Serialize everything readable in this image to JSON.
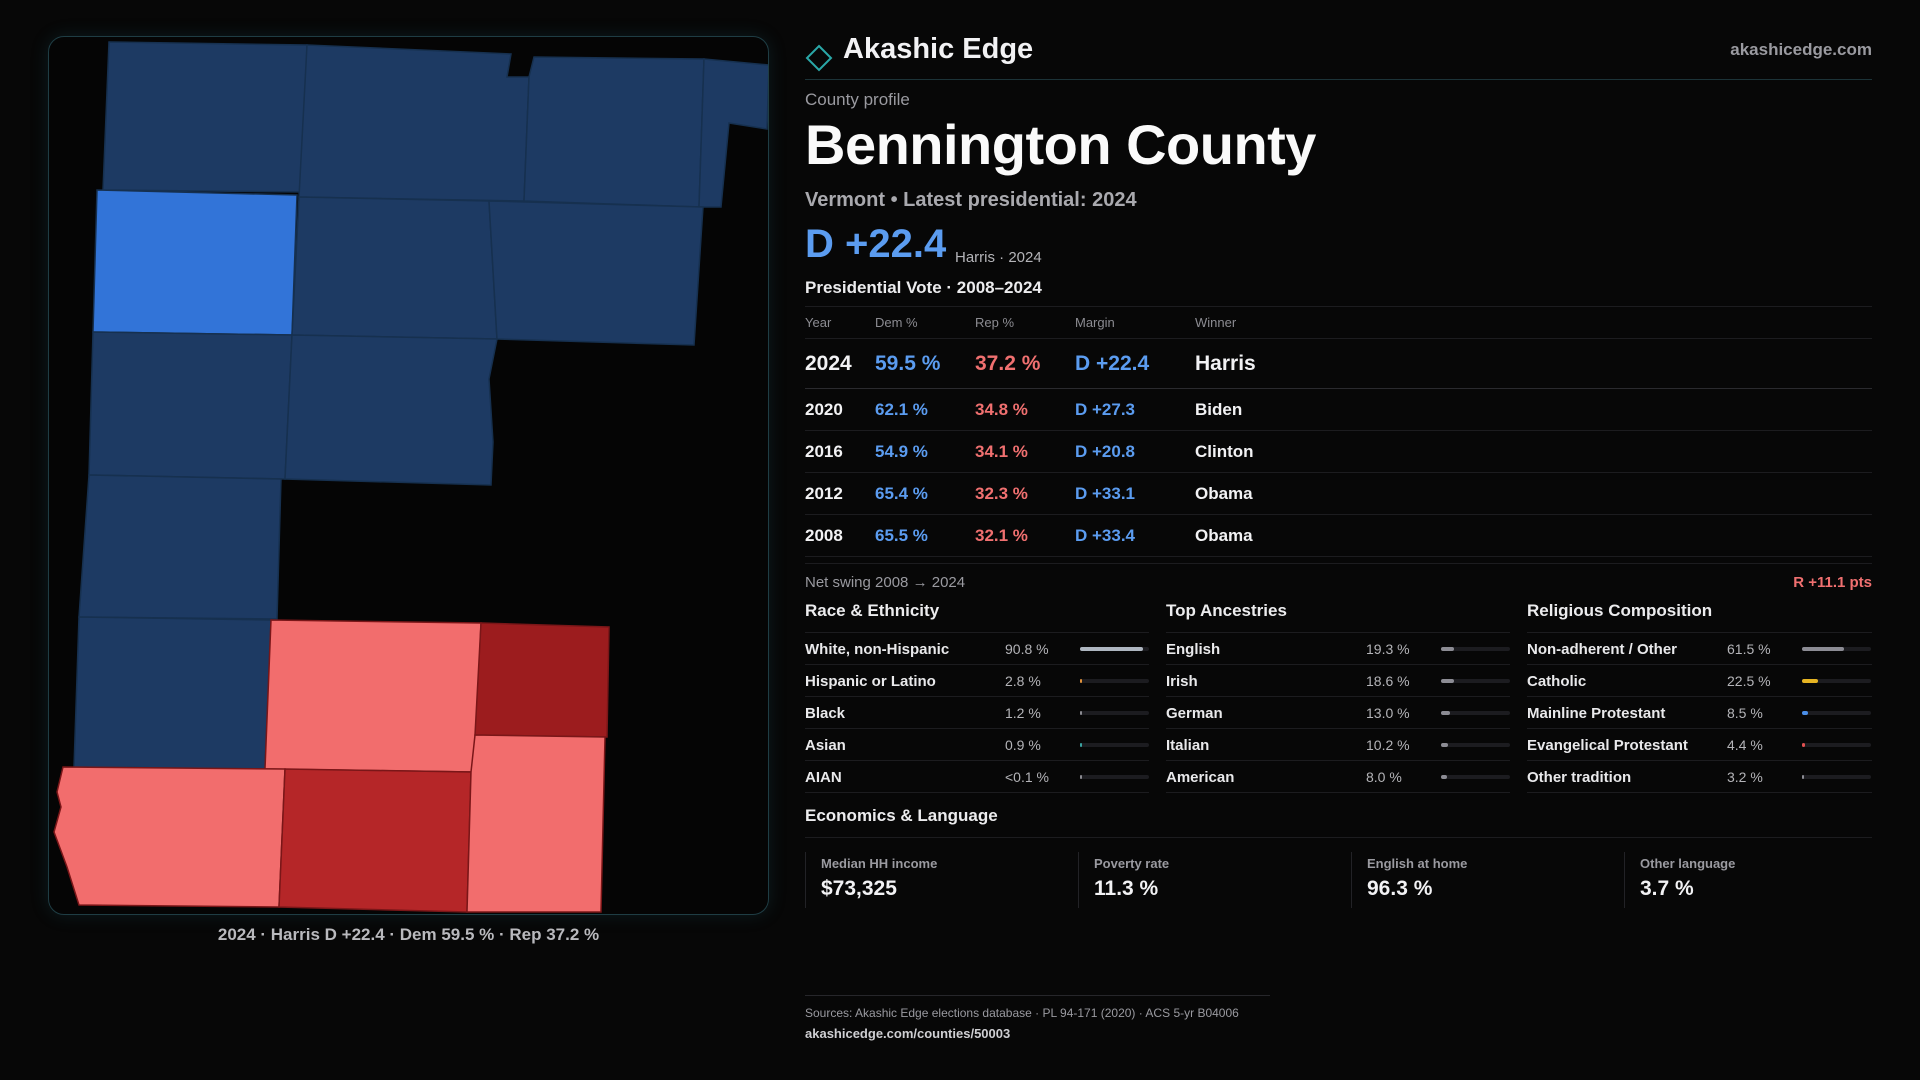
{
  "colors": {
    "dem_strong": "#1d3a63",
    "dem_light": "#3274d8",
    "rep_light": "#f26d6d",
    "rep_dark": "#9c1c1e",
    "rep_mid": "#b52628",
    "dem_text": "#5b9cf0",
    "rep_text": "#f07070"
  },
  "map": {
    "caption": "2024 · Harris D +22.4 · Dem 59.5 % · Rep 37.2 %"
  },
  "brand": {
    "name": "Akashic Edge",
    "url": "akashicedge.com",
    "icon": "diamond-icon"
  },
  "profile": {
    "kicker": "County profile",
    "title": "Bennington County",
    "subtitle": "Vermont • Latest presidential: 2024",
    "margin": "D +22.4",
    "margin_note": "Harris · 2024"
  },
  "vote_table": {
    "title": "Presidential Vote · 2008–2024",
    "headers": {
      "year": "Year",
      "dem": "Dem %",
      "rep": "Rep %",
      "margin": "Margin",
      "winner": "Winner"
    },
    "rows": [
      {
        "year": "2024",
        "dem": "59.5 %",
        "rep": "37.2 %",
        "margin": "D +22.4",
        "winner": "Harris"
      },
      {
        "year": "2020",
        "dem": "62.1 %",
        "rep": "34.8 %",
        "margin": "D +27.3",
        "winner": "Biden"
      },
      {
        "year": "2016",
        "dem": "54.9 %",
        "rep": "34.1 %",
        "margin": "D +20.8",
        "winner": "Clinton"
      },
      {
        "year": "2012",
        "dem": "65.4 %",
        "rep": "32.3 %",
        "margin": "D +33.1",
        "winner": "Obama"
      },
      {
        "year": "2008",
        "dem": "65.5 %",
        "rep": "32.1 %",
        "margin": "D +33.4",
        "winner": "Obama"
      }
    ]
  },
  "swing": {
    "label": "Net swing 2008 → 2024",
    "value": "R +11.1 pts"
  },
  "race": {
    "title": "Race & Ethnicity",
    "rows": [
      {
        "label": "White, non-Hispanic",
        "value": "90.8 %",
        "share": 0.908,
        "color": "#aeb6c0"
      },
      {
        "label": "Hispanic or Latino",
        "value": "2.8 %",
        "share": 0.028,
        "color": "#e0913a"
      },
      {
        "label": "Black",
        "value": "1.2 %",
        "share": 0.012,
        "color": "#8a8a90"
      },
      {
        "label": "Asian",
        "value": "0.9 %",
        "share": 0.009,
        "color": "#3aa3a0"
      },
      {
        "label": "AIAN",
        "value": "<0.1 %",
        "share": 0.001,
        "color": "#8a8a90"
      }
    ]
  },
  "ancestry": {
    "title": "Top Ancestries",
    "rows": [
      {
        "label": "English",
        "value": "19.3 %",
        "share": 0.193,
        "color": "#8c8c94"
      },
      {
        "label": "Irish",
        "value": "18.6 %",
        "share": 0.186,
        "color": "#8c8c94"
      },
      {
        "label": "German",
        "value": "13.0 %",
        "share": 0.13,
        "color": "#8c8c94"
      },
      {
        "label": "Italian",
        "value": "10.2 %",
        "share": 0.102,
        "color": "#8c8c94"
      },
      {
        "label": "American",
        "value": "8.0 %",
        "share": 0.08,
        "color": "#8c8c94"
      }
    ]
  },
  "religion": {
    "title": "Religious Composition",
    "rows": [
      {
        "label": "Non-adherent / Other",
        "value": "61.5 %",
        "share": 0.615,
        "color": "#8c8c94"
      },
      {
        "label": "Catholic",
        "value": "22.5 %",
        "share": 0.225,
        "color": "#e6b422"
      },
      {
        "label": "Mainline Protestant",
        "value": "8.5 %",
        "share": 0.085,
        "color": "#4a8ee8"
      },
      {
        "label": "Evangelical Protestant",
        "value": "4.4 %",
        "share": 0.044,
        "color": "#e05050"
      },
      {
        "label": "Other tradition",
        "value": "3.2 %",
        "share": 0.032,
        "color": "#8c8c94"
      }
    ]
  },
  "economics": {
    "title": "Economics & Language",
    "cells": [
      {
        "label": "Median HH income",
        "value": "$73,325"
      },
      {
        "label": "Poverty rate",
        "value": "11.3 %"
      },
      {
        "label": "English at home",
        "value": "96.3 %"
      },
      {
        "label": "Other language",
        "value": "3.7 %"
      }
    ]
  },
  "footer": {
    "sources": "Sources: Akashic Edge elections database · PL 94-171 (2020) · ACS 5-yr B04006",
    "url": "akashicedge.com/counties/50003"
  }
}
